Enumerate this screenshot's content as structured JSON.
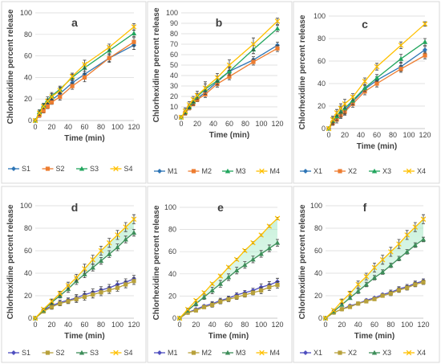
{
  "chart_data": [
    {
      "type": "line",
      "panel_label": "a",
      "xlabel": "Time (min)",
      "ylabel": "Chlorhexidine percent release",
      "xlim": [
        0,
        120
      ],
      "ylim": [
        0,
        100
      ],
      "xticks": [
        0,
        20,
        40,
        60,
        80,
        100,
        120
      ],
      "yticks": [
        0,
        20,
        40,
        60,
        80,
        100
      ],
      "grid": true,
      "legend_position": "bottom",
      "x": [
        0,
        5,
        10,
        15,
        20,
        30,
        45,
        60,
        90,
        120
      ],
      "series": [
        {
          "name": "S1",
          "color": "#2e75b6",
          "marker": "diamond",
          "values": [
            0,
            6,
            12,
            15,
            19,
            25,
            35,
            43,
            58,
            70
          ],
          "errors": [
            0,
            2,
            2,
            2,
            3,
            3,
            3,
            3,
            4,
            4
          ]
        },
        {
          "name": "S2",
          "color": "#ed7d31",
          "marker": "square",
          "values": [
            0,
            5,
            9,
            13,
            17,
            22,
            32,
            40,
            58,
            73
          ],
          "errors": [
            0,
            2,
            2,
            2,
            2,
            3,
            3,
            4,
            3,
            4
          ]
        },
        {
          "name": "S3",
          "color": "#22a65e",
          "marker": "triangle",
          "values": [
            0,
            8,
            14,
            19,
            23,
            29,
            40,
            49,
            65,
            81
          ],
          "errors": [
            0,
            2,
            2,
            3,
            3,
            3,
            3,
            3,
            3,
            3
          ]
        },
        {
          "name": "S4",
          "color": "#ffc000",
          "marker": "x",
          "values": [
            0,
            7,
            13,
            18,
            22,
            28,
            41,
            52,
            68,
            87
          ],
          "errors": [
            0,
            2,
            2,
            2,
            3,
            3,
            3,
            4,
            3,
            3
          ]
        }
      ]
    },
    {
      "type": "line",
      "panel_label": "b",
      "xlabel": "Time (min)",
      "ylabel": "Chlorhexidine percent release",
      "xlim": [
        0,
        120
      ],
      "ylim": [
        0,
        100
      ],
      "xticks": [
        0,
        20,
        40,
        60,
        80,
        100,
        120
      ],
      "yticks": [
        0,
        10,
        20,
        30,
        40,
        50,
        60,
        70,
        80,
        90,
        100
      ],
      "grid": true,
      "legend_position": "bottom",
      "x": [
        0,
        5,
        10,
        15,
        20,
        30,
        45,
        60,
        90,
        120
      ],
      "series": [
        {
          "name": "M1",
          "color": "#2e75b6",
          "marker": "diamond",
          "values": [
            0,
            5,
            10,
            14,
            18,
            24,
            34,
            44,
            55,
            69
          ],
          "errors": [
            0,
            2,
            2,
            2,
            3,
            3,
            3,
            3,
            3,
            3
          ]
        },
        {
          "name": "M2",
          "color": "#ed7d31",
          "marker": "square",
          "values": [
            0,
            4,
            9,
            13,
            17,
            22,
            32,
            39,
            53,
            66
          ],
          "errors": [
            0,
            2,
            2,
            2,
            2,
            3,
            3,
            3,
            3,
            3
          ]
        },
        {
          "name": "M3",
          "color": "#22a65e",
          "marker": "triangle",
          "values": [
            0,
            5,
            10,
            15,
            20,
            27,
            35,
            44,
            65,
            85
          ],
          "errors": [
            0,
            2,
            2,
            3,
            3,
            5,
            4,
            4,
            4,
            3
          ]
        },
        {
          "name": "M4",
          "color": "#ffc000",
          "marker": "x",
          "values": [
            0,
            6,
            12,
            17,
            21,
            28,
            38,
            50,
            70,
            92
          ],
          "errors": [
            0,
            3,
            3,
            3,
            4,
            6,
            4,
            5,
            6,
            3
          ]
        }
      ]
    },
    {
      "type": "line",
      "panel_label": "c",
      "xlabel": "Time (min)",
      "ylabel": "Chlorhexidine percent release",
      "xlim": [
        0,
        120
      ],
      "ylim": [
        0,
        100
      ],
      "xticks": [
        0,
        20,
        40,
        60,
        80,
        100,
        120
      ],
      "yticks": [
        0,
        20,
        40,
        60,
        80,
        100
      ],
      "grid": true,
      "legend_position": "bottom",
      "x": [
        0,
        5,
        10,
        15,
        20,
        30,
        45,
        60,
        90,
        120
      ],
      "series": [
        {
          "name": "X1",
          "color": "#2e75b6",
          "marker": "diamond",
          "values": [
            0,
            6,
            10,
            14,
            16,
            24,
            35,
            43,
            55,
            70
          ],
          "errors": [
            0,
            3,
            3,
            4,
            4,
            3,
            3,
            3,
            4,
            3
          ]
        },
        {
          "name": "X2",
          "color": "#ed7d31",
          "marker": "square",
          "values": [
            0,
            5,
            8,
            12,
            15,
            22,
            33,
            40,
            53,
            65
          ],
          "errors": [
            0,
            2,
            3,
            3,
            3,
            3,
            3,
            3,
            3,
            3
          ]
        },
        {
          "name": "X3",
          "color": "#22a65e",
          "marker": "triangle",
          "values": [
            0,
            7,
            11,
            15,
            18,
            25,
            36,
            45,
            62,
            77
          ],
          "errors": [
            0,
            3,
            4,
            5,
            5,
            4,
            3,
            3,
            4,
            3
          ]
        },
        {
          "name": "X4",
          "color": "#ffc000",
          "marker": "x",
          "values": [
            0,
            8,
            14,
            18,
            22,
            28,
            42,
            55,
            74,
            93
          ],
          "errors": [
            0,
            3,
            3,
            4,
            4,
            3,
            3,
            3,
            3,
            2
          ]
        }
      ]
    },
    {
      "type": "line",
      "panel_label": "d",
      "xlabel": "Time (min)",
      "ylabel": "Chlorhexidine percent release",
      "xlim": [
        0,
        120
      ],
      "ylim": [
        0,
        100
      ],
      "xticks": [
        0,
        20,
        40,
        60,
        80,
        100,
        120
      ],
      "yticks": [
        0,
        20,
        40,
        60,
        80,
        100
      ],
      "grid": true,
      "legend_position": "bottom",
      "shaded_band_between": [
        "S3",
        "S4"
      ],
      "x": [
        0,
        10,
        20,
        30,
        40,
        50,
        60,
        70,
        80,
        90,
        100,
        110,
        120
      ],
      "series": [
        {
          "name": "S1",
          "color": "#4f4fbf",
          "marker": "diamond",
          "values": [
            0,
            7,
            11,
            14,
            16,
            18,
            21,
            23,
            25,
            27,
            30,
            32,
            35
          ],
          "errors": [
            0,
            1,
            2,
            2,
            2,
            3,
            3,
            3,
            3,
            3,
            3,
            3,
            3
          ]
        },
        {
          "name": "S2",
          "color": "#b8a13b",
          "marker": "square",
          "values": [
            0,
            6,
            10,
            13,
            15,
            17,
            19,
            21,
            23,
            25,
            27,
            30,
            33
          ],
          "errors": [
            0,
            1,
            2,
            2,
            2,
            3,
            3,
            3,
            3,
            3,
            3,
            3,
            3
          ]
        },
        {
          "name": "S3",
          "color": "#3e8e5a",
          "marker": "triangle",
          "values": [
            0,
            7,
            14,
            20,
            26,
            33,
            39,
            45,
            51,
            57,
            63,
            70,
            76
          ],
          "errors": [
            0,
            1,
            2,
            2,
            3,
            3,
            3,
            3,
            3,
            3,
            3,
            3,
            3
          ]
        },
        {
          "name": "S4",
          "color": "#ffc000",
          "marker": "x",
          "values": [
            0,
            8,
            15,
            22,
            29,
            36,
            44,
            52,
            60,
            67,
            74,
            81,
            88
          ],
          "errors": [
            0,
            1,
            2,
            2,
            3,
            3,
            4,
            4,
            4,
            4,
            4,
            4,
            4
          ]
        }
      ]
    },
    {
      "type": "line",
      "panel_label": "e",
      "xlabel": "Time (min)",
      "ylabel": "Chlorhexidine percent release",
      "xlim": [
        0,
        120
      ],
      "ylim": [
        0,
        100
      ],
      "xticks": [
        0,
        20,
        40,
        60,
        80,
        100,
        120
      ],
      "yticks": [
        0,
        20,
        40,
        60,
        80,
        100
      ],
      "grid": true,
      "legend_position": "bottom",
      "shaded_band_between": [
        "M3",
        "M4"
      ],
      "x": [
        0,
        10,
        20,
        30,
        40,
        50,
        60,
        70,
        80,
        90,
        100,
        110,
        120
      ],
      "series": [
        {
          "name": "M1",
          "color": "#4f4fbf",
          "marker": "diamond",
          "values": [
            0,
            5,
            8,
            11,
            13,
            16,
            18,
            21,
            23,
            25,
            28,
            30,
            33
          ],
          "errors": [
            0,
            1,
            1,
            1,
            2,
            2,
            2,
            2,
            2,
            2,
            3,
            3,
            3
          ]
        },
        {
          "name": "M2",
          "color": "#b8a13b",
          "marker": "square",
          "values": [
            0,
            5,
            7,
            10,
            12,
            15,
            17,
            19,
            21,
            23,
            25,
            28,
            30
          ],
          "errors": [
            0,
            1,
            1,
            1,
            2,
            2,
            2,
            2,
            2,
            2,
            3,
            3,
            3
          ]
        },
        {
          "name": "M3",
          "color": "#3e8e5a",
          "marker": "triangle",
          "values": [
            0,
            7,
            13,
            19,
            25,
            31,
            37,
            43,
            48,
            53,
            58,
            63,
            68
          ],
          "errors": [
            0,
            1,
            2,
            2,
            3,
            3,
            3,
            3,
            3,
            3,
            3,
            3,
            3
          ]
        },
        {
          "name": "M4",
          "color": "#ffc000",
          "marker": "x",
          "values": [
            0,
            8,
            16,
            23,
            31,
            38,
            46,
            53,
            61,
            68,
            75,
            83,
            90
          ],
          "errors": [
            0,
            1,
            1,
            1,
            1,
            1,
            1,
            1,
            1,
            1,
            1,
            1,
            1
          ]
        }
      ]
    },
    {
      "type": "line",
      "panel_label": "f",
      "xlabel": "Time (min)",
      "ylabel": "Chlorhexidine percent release",
      "xlim": [
        0,
        120
      ],
      "ylim": [
        0,
        100
      ],
      "xticks": [
        0,
        20,
        40,
        60,
        80,
        100,
        120
      ],
      "yticks": [
        0,
        20,
        40,
        60,
        80,
        100
      ],
      "grid": true,
      "legend_position": "bottom",
      "shaded_band_between": [
        "X3",
        "X4"
      ],
      "x": [
        0,
        10,
        20,
        30,
        40,
        50,
        60,
        70,
        80,
        90,
        100,
        110,
        120
      ],
      "series": [
        {
          "name": "X1",
          "color": "#4f4fbf",
          "marker": "diamond",
          "values": [
            0,
            5,
            8,
            11,
            13,
            16,
            18,
            21,
            23,
            26,
            28,
            31,
            33
          ],
          "errors": [
            0,
            1,
            1,
            1,
            1,
            1,
            1,
            1,
            2,
            2,
            2,
            2,
            2
          ]
        },
        {
          "name": "X2",
          "color": "#b8a13b",
          "marker": "square",
          "values": [
            0,
            5,
            8,
            10,
            13,
            15,
            17,
            20,
            22,
            25,
            27,
            30,
            32
          ],
          "errors": [
            0,
            1,
            1,
            1,
            1,
            1,
            1,
            1,
            2,
            2,
            2,
            2,
            2
          ]
        },
        {
          "name": "X3",
          "color": "#3e8e5a",
          "marker": "triangle",
          "values": [
            0,
            6,
            12,
            18,
            24,
            30,
            36,
            41,
            47,
            53,
            59,
            65,
            70
          ],
          "errors": [
            0,
            1,
            1,
            1,
            2,
            2,
            2,
            2,
            2,
            2,
            2,
            2,
            2
          ]
        },
        {
          "name": "X4",
          "color": "#ffc000",
          "marker": "x",
          "values": [
            0,
            7,
            15,
            22,
            30,
            37,
            45,
            52,
            59,
            66,
            74,
            81,
            88
          ],
          "errors": [
            0,
            1,
            2,
            2,
            3,
            3,
            4,
            4,
            4,
            4,
            4,
            4,
            4
          ]
        }
      ]
    }
  ]
}
